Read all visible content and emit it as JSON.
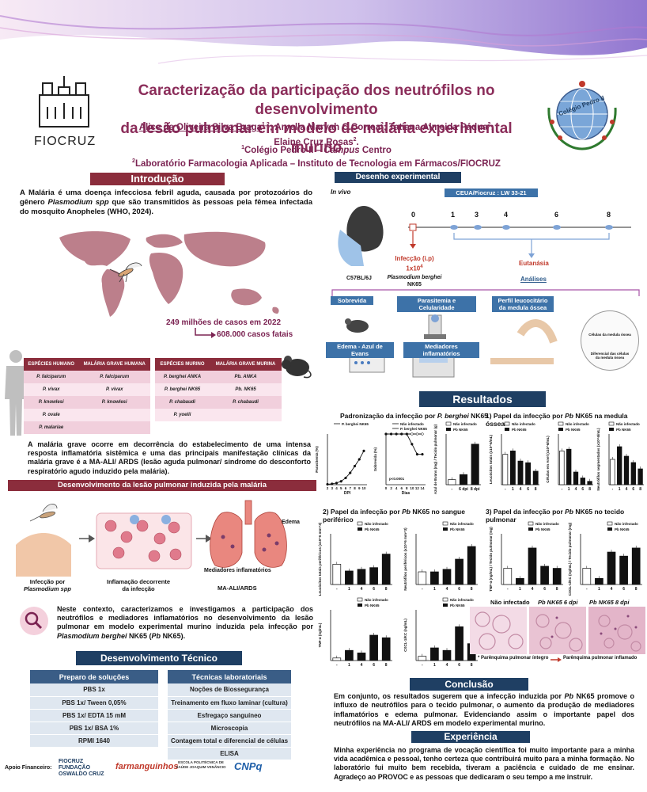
{
  "header": {
    "title_line1": "Caracterização da participação dos neutrófilos no desenvolvimento",
    "title_line2": "da lesão pulmonar em modelo de malária experimental murino",
    "author1": "Alice de Oliveira Silva Braga",
    "author1_sup": "1,2",
    "author2": "; Aryella Maryah C.Correa",
    "author2_sup": "2",
    "author3": "; Tatiana Almeida Pádua",
    "author3_sup": "2",
    "author3_end": ";",
    "author4": "Elaine Cruz Rosas",
    "author4_sup": "2",
    "author4_end": ".",
    "affil1_sup": "1",
    "affil1": "Colégio Pedro II – ",
    "affil1_campus": "Campus",
    "affil1_end": " Centro",
    "affil2_sup": "2",
    "affil2": "Laboratório Farmacologia Aplicada – Instituto de Tecnologia em Fármacos/FIOCRUZ",
    "fiocruz_logo_text": "FIOCRUZ",
    "cp_logo_text": "Colégio Pedro II"
  },
  "intro": {
    "heading": "Introdução",
    "text_a": "A Malária é uma doença infecciosa febril aguda, causada por protozoários do gênero ",
    "text_b": "Plasmodium spp",
    "text_c": " que são transmitidos às pessoas pela fêmea infectada do mosquito Anopheles (WHO, 2024).",
    "cases": "249 milhões de casos em 2022",
    "deaths": "608.000 casos fatais"
  },
  "species_human": {
    "headers": [
      "ESPÉCIES HUMANO",
      "MALÁRIA GRAVE HUMANA"
    ],
    "rows": [
      [
        "P. falciparum",
        "P. falciparum"
      ],
      [
        "P. vivax",
        "P. vivax"
      ],
      [
        "P. knowlesi",
        "P. knowlesi"
      ],
      [
        "P. ovale",
        ""
      ],
      [
        "P. malariae",
        ""
      ]
    ]
  },
  "species_mouse": {
    "headers": [
      "ESPÉCIES MURINO",
      "MALÁRIA GRAVE MURINA"
    ],
    "rows": [
      [
        "P. berghei ANKA",
        "Pb. ANKA"
      ],
      [
        "P. berghei NK65",
        "Pb. NK65"
      ],
      [
        "P. chabaudi",
        "P. chabaudi"
      ],
      [
        "P. yoelii",
        ""
      ]
    ]
  },
  "severe": {
    "text": "A malária grave ocorre em decorrência do estabelecimento de uma intensa resposta inflamatória sistêmica e uma das principais manifestação clínicas da malária grave é a MA-ALI/ ARDS (lesão aguda pulmonar/ síndrome do desconforto respiratório agudo induzido pela malária)."
  },
  "lesion": {
    "heading": "Desenvolvimento da lesão pulmonar induzida pela malária",
    "label1_a": "Infecção por",
    "label1_b": "Plasmodium spp",
    "label2_a": "Inflamação decorrente",
    "label2_b": "da infecção",
    "label3": "MA-ALI/ARDS",
    "edema": "Edema",
    "mediators": "Mediadores inflamatórios"
  },
  "context": {
    "text_a": "Neste contexto, caracterizamos e investigamos a participação dos neutrófilos e mediadores inflamatórios no desenvolvimento da lesão pulmonar em modelo experimental murino induzida pela infecção por ",
    "text_b": "Plasmodium berghei",
    "text_c": " NK65 (",
    "text_d": "Pb",
    "text_e": " NK65)."
  },
  "tech": {
    "heading": "Desenvolvimento Técnico",
    "solutions_header": "Preparo de soluções",
    "solutions": [
      "PBS 1x",
      "PBS 1x/ Tween 0,05%",
      "PBS 1x/ EDTA 15 mM",
      "PBS 1x/ BSA 1%",
      "RPMI 1640"
    ],
    "techniques_header": "Técnicas laboratoriais",
    "techniques": [
      "Noções de Biossegurança",
      "Treinamento em fluxo laminar (cultura)",
      "Esfregaço sanguíneo",
      "Microscopia",
      "Contagem total e diferencial de células",
      "ELISA"
    ]
  },
  "funding": {
    "label": "Apoio Financeiro:",
    "logos": [
      "FIOCRUZ FUNDAÇÃO OSWALDO CRUZ",
      "farmanguinhos",
      "ESCOLA POLITÉCNICA DE SAÚDE JOAQUIM VENÂNCIO",
      "CNPq"
    ]
  },
  "design": {
    "heading": "Desenho experimental",
    "in_vivo": "In vivo",
    "ceua": "CEUA/Fiocruz : LW 33-21",
    "days": [
      "0",
      "1",
      "3",
      "4",
      "6",
      "8"
    ],
    "mouse": "C57BL/6J",
    "infection": "Infecção (i.p)",
    "dose": "1x10",
    "dose_exp": "4",
    "parasite": "Plasmodium berghei",
    "strain": "NK65",
    "euthanasia": "Eutanásia",
    "analyses": "Análises",
    "boxes": [
      "Sobrevida",
      "Parasitemia e Celularidade",
      "Perfil leucocitário da medula óssea",
      "Edema - Azul de Evans",
      "Mediadores inflamatórios"
    ],
    "cells1": "Células da medula óssea",
    "cells2": "Diferencial das células da medula óssea"
  },
  "results": {
    "heading": "Resultados",
    "std_title_a": "Padronização da infecção por ",
    "std_title_b": "P. berghei",
    "std_title_c": " NK65",
    "p1_title_a": "1) Papel da infecção por ",
    "p1_title_b": "Pb",
    "p1_title_c": " NK65 na medula óssea",
    "p2_title_a": "2) Papel da infecção por ",
    "p2_title_b": "Pb",
    "p2_title_c": " NK65 no sangue periférico",
    "p3_title_a": "3) Papel da infecção por ",
    "p3_title_b": "Pb",
    "p3_title_c": " NK65 no tecido pulmonar",
    "legend_uninf": "Não infectado",
    "legend_pb": "Pb NK65",
    "legend_pb_line": "P. berghei NK65",
    "histo": [
      "Não infectado",
      "Pb NK65 6 dpi",
      "Pb NK65 8 dpi"
    ],
    "histo_legend1": "Parênquima pulmonar íntegro",
    "histo_legend2": "Parênquima pulmonar inflamado",
    "p_value": "p<0.0001"
  },
  "chart_data": [
    {
      "type": "line",
      "title": "",
      "xlabel": "DPI",
      "ylabel": "Parasitemia (%)",
      "x": [
        2,
        3,
        4,
        5,
        6,
        7,
        8,
        9,
        10
      ],
      "series": [
        {
          "name": "P. berghei NK65",
          "values": [
            0.5,
            1,
            2,
            4,
            8,
            14,
            22,
            30,
            40
          ]
        }
      ],
      "ylim": [
        0,
        60
      ]
    },
    {
      "type": "line",
      "title": "",
      "xlabel": "Dias",
      "ylabel": "Sobrevida (%)",
      "x": [
        0,
        2,
        4,
        6,
        8,
        10,
        12,
        14
      ],
      "series": [
        {
          "name": "Não infectado",
          "values": [
            100,
            100,
            100,
            100,
            100,
            100,
            100,
            100
          ]
        },
        {
          "name": "P. berghei NK65",
          "values": [
            100,
            100,
            100,
            100,
            100,
            80,
            60,
            60
          ]
        }
      ],
      "ylim": [
        0,
        100
      ]
    },
    {
      "type": "bar",
      "ylabel": "Azul de Evans (mg) / Tecido pulmonar (g)",
      "categories": [
        "-",
        "6 dpi",
        "8 dpi"
      ],
      "values": [
        0.02,
        0.04,
        0.16
      ],
      "ylim": [
        0,
        0.2
      ]
    },
    {
      "type": "bar",
      "ylabel": "Leucócitos totais (x10^6/mL)",
      "categories": [
        "-",
        "1",
        "4",
        "6",
        "8"
      ],
      "values": [
        9,
        10,
        7,
        6.5,
        4
      ],
      "ylim": [
        0,
        15
      ]
    },
    {
      "type": "bar",
      "ylabel": "Células em Anel (x10^6/mL)",
      "categories": [
        "-",
        "1",
        "4",
        "6",
        "8"
      ],
      "values": [
        4,
        4.2,
        1.5,
        0.8,
        0.4
      ],
      "ylim": [
        0,
        6
      ]
    },
    {
      "type": "bar",
      "ylabel": "Neutrófilos segmentados (x10^6/mL)",
      "categories": [
        "-",
        "1",
        "4",
        "6",
        "8"
      ],
      "values": [
        4,
        6,
        4.5,
        3.5,
        2.5
      ],
      "ylim": [
        0,
        8
      ]
    },
    {
      "type": "bar",
      "ylabel": "Leucócitos totais periféricos (x10^6 mm^3)",
      "categories": [
        "-",
        "1",
        "4",
        "6",
        "8"
      ],
      "values": [
        6,
        4,
        4.5,
        5,
        9
      ],
      "ylim": [
        0,
        15
      ]
    },
    {
      "type": "bar",
      "ylabel": "Neutrófilos periféricos (x10^6 mm^3)",
      "categories": [
        "-",
        "1",
        "4",
        "6",
        "8"
      ],
      "values": [
        1,
        1,
        1.2,
        2,
        3
      ],
      "ylim": [
        0,
        4
      ]
    },
    {
      "type": "bar",
      "ylabel": "TNF-α (ng/mL) / Tecido pulmonar (mg)",
      "categories": [
        "-",
        "1",
        "4",
        "6",
        "8"
      ],
      "values": [
        0.8,
        0.3,
        1.8,
        0.9,
        0.8
      ],
      "ylim": [
        0,
        2.5
      ]
    },
    {
      "type": "bar",
      "ylabel": "CXCL-1/KC (ng/mL) / Tecido pulmonar (mg)",
      "categories": [
        "-",
        "1",
        "4",
        "6",
        "8"
      ],
      "values": [
        0.08,
        0.03,
        0.16,
        0.14,
        0.18
      ],
      "ylim": [
        0,
        0.25
      ]
    },
    {
      "type": "bar",
      "ylabel": "TNF-α (ng/mL)",
      "categories": [
        "-",
        "1",
        "4",
        "6",
        "8"
      ],
      "values": [
        0.05,
        0.2,
        0.15,
        0.5,
        0.45
      ],
      "ylim": [
        0,
        1
      ]
    },
    {
      "type": "bar",
      "ylabel": "CXCL-1/KC (ng/mL)",
      "categories": [
        "-",
        "1",
        "4",
        "6",
        "8"
      ],
      "values": [
        0.5,
        1.5,
        1.2,
        4,
        2
      ],
      "ylim": [
        0,
        6
      ]
    }
  ],
  "conclusion": {
    "heading": "Conclusão",
    "text_a": "Em conjunto, os resultados sugerem que a infecção induzida por ",
    "text_b": "Pb",
    "text_c": " NK65 promove o influxo de neutrófilos para o tecido pulmonar, o aumento da produção de mediadores inflamatórios e edema pulmonar. Evidenciando assim o importante papel dos neutrófilos na MA-ALI/ ARDS em modelo experimental murino."
  },
  "experience": {
    "heading": "Experiência",
    "text": "Minha experiência no programa de vocação científica foi muito importante para a minha vida acadêmica e pessoal, tenho certeza que contribuirá muito para a minha formação. No laboratório fui muito bem recebida, tiveram a paciência e cuidado de me ensinar. Agradeço ao PROVOC e as pessoas que dedicaram o seu tempo a me instruir."
  },
  "colors": {
    "maroon": "#8b2d3c",
    "navy": "#1f3f63",
    "title": "#8b2d5a",
    "blue": "#3d72a8"
  }
}
